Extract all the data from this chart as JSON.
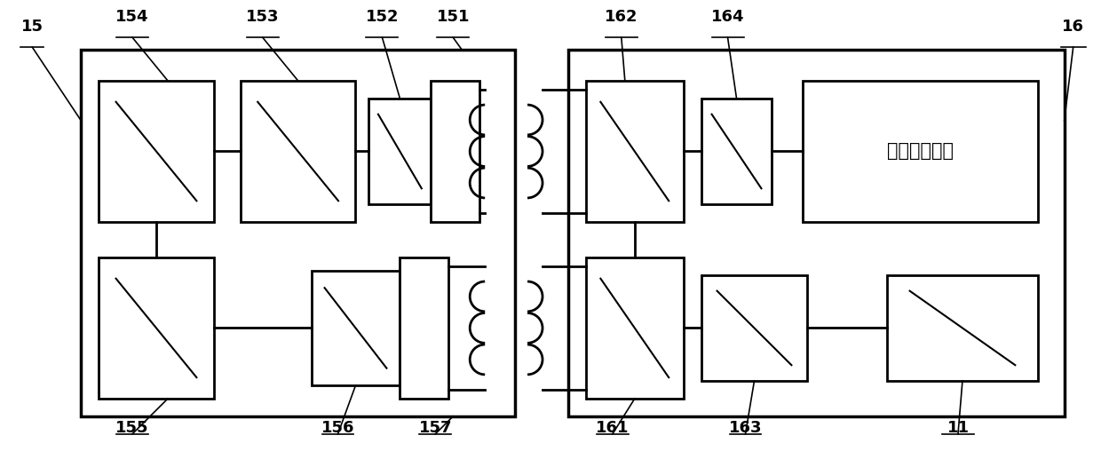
{
  "bg_color": "#ffffff",
  "line_color": "#000000",
  "lw_outer": 2.5,
  "lw_inner": 2.0,
  "lw_thin": 1.2,
  "fs_label": 13,
  "fs_chinese": 15,
  "fw": "bold"
}
